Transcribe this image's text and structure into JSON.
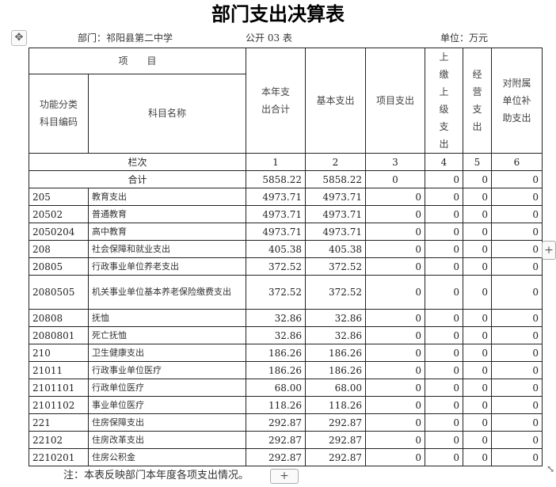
{
  "title": "部门支出决算表",
  "dept": "部门：祁阳县第二中学",
  "table_no": "公开 03 表",
  "unit": "单位：万元",
  "headers": {
    "item": "项　　目",
    "code": "功能分类科目编码",
    "name": "科目名称",
    "c1": "本年支出合计",
    "c2": "基本支出",
    "c3": "项目支出",
    "c4": "上缴上级支出",
    "c5": "经营支出",
    "c6": "对附属单位补助支出",
    "lanci": "栏次",
    "n": [
      "1",
      "2",
      "3",
      "4",
      "5",
      "6"
    ]
  },
  "total": {
    "label": "合计",
    "values": [
      "5858.22",
      "5858.22",
      "0",
      "0",
      "0",
      "0"
    ]
  },
  "rows": [
    {
      "code": "205",
      "name": "教育支出",
      "v": [
        "4973.71",
        "4973.71",
        "0",
        "0",
        "0",
        "0"
      ]
    },
    {
      "code": "20502",
      "name": "普通教育",
      "v": [
        "4973.71",
        "4973.71",
        "0",
        "0",
        "0",
        "0"
      ]
    },
    {
      "code": "2050204",
      "name": "高中教育",
      "v": [
        "4973.71",
        "4973.71",
        "0",
        "0",
        "0",
        "0"
      ]
    },
    {
      "code": "208",
      "name": "社会保障和就业支出",
      "v": [
        "405.38",
        "405.38",
        "0",
        "0",
        "0",
        "0"
      ]
    },
    {
      "code": "20805",
      "name": "行政事业单位养老支出",
      "v": [
        "372.52",
        "372.52",
        "0",
        "0",
        "0",
        "0"
      ]
    },
    {
      "code": "2080505",
      "name": "机关事业单位基本养老保险缴费支出",
      "v": [
        "372.52",
        "372.52",
        "0",
        "0",
        "0",
        "0"
      ]
    },
    {
      "code": "20808",
      "name": "抚恤",
      "v": [
        "32.86",
        "32.86",
        "0",
        "0",
        "0",
        "0"
      ]
    },
    {
      "code": "2080801",
      "name": "死亡抚恤",
      "v": [
        "32.86",
        "32.86",
        "0",
        "0",
        "0",
        "0"
      ]
    },
    {
      "code": "210",
      "name": "卫生健康支出",
      "v": [
        "186.26",
        "186.26",
        "0",
        "0",
        "0",
        "0"
      ]
    },
    {
      "code": "21011",
      "name": "行政事业单位医疗",
      "v": [
        "186.26",
        "186.26",
        "0",
        "0",
        "0",
        "0"
      ]
    },
    {
      "code": "2101101",
      "name": "行政单位医疗",
      "v": [
        "68.00",
        "68.00",
        "0",
        "0",
        "0",
        "0"
      ]
    },
    {
      "code": "2101102",
      "name": "事业单位医疗",
      "v": [
        "118.26",
        "118.26",
        "0",
        "0",
        "0",
        "0"
      ]
    },
    {
      "code": "221",
      "name": "住房保障支出",
      "v": [
        "292.87",
        "292.87",
        "0",
        "0",
        "0",
        "0"
      ]
    },
    {
      "code": "22102",
      "name": "住房改革支出",
      "v": [
        "292.87",
        "292.87",
        "0",
        "0",
        "0",
        "0"
      ]
    },
    {
      "code": "2210201",
      "name": "住房公积金",
      "v": [
        "292.87",
        "292.87",
        "0",
        "0",
        "0",
        "0"
      ]
    }
  ],
  "note": "注：本表反映部门本年度各项支出情况。",
  "icons": {
    "move": "move-icon",
    "add": "plus-icon",
    "resize": "resize-icon"
  }
}
